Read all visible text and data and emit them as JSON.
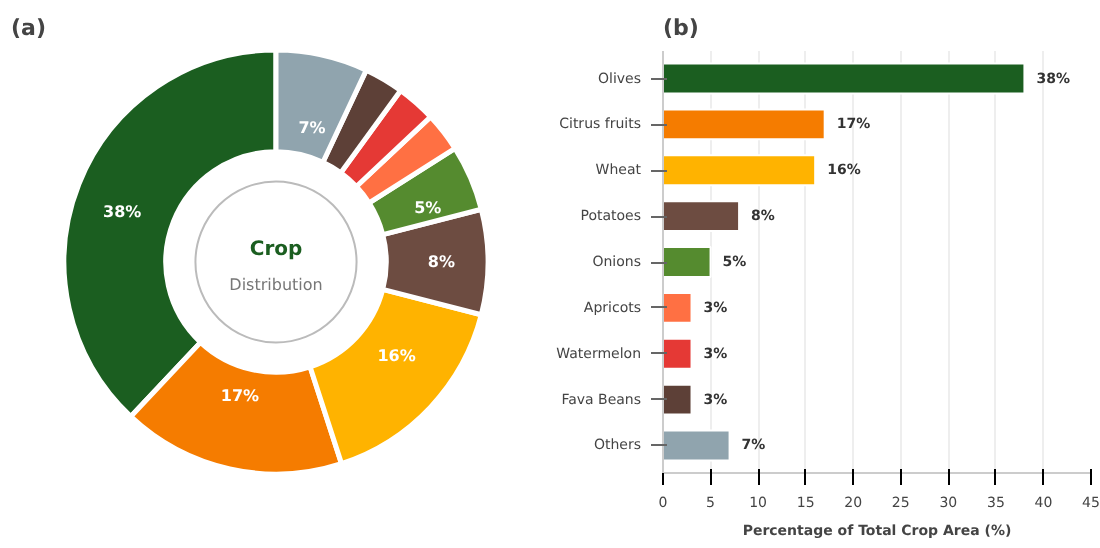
{
  "chart_data": [
    {
      "type": "donut",
      "title": "(a)",
      "categories": [
        null,
        null,
        null,
        null,
        null,
        null,
        null,
        null,
        null
      ],
      "values": [
        38,
        17,
        16,
        8,
        5,
        3,
        3,
        3,
        7
      ],
      "colors": [
        "#1b5e20",
        "#f57c00",
        "#ffb300",
        "#6d4c41",
        "#558b2f",
        "#ff7043",
        "#e53935",
        "#5d4037",
        "#90a4ae"
      ],
      "value_labels": [
        "38%",
        "17%",
        "16%",
        "8%",
        "5%",
        null,
        null,
        null,
        "7%"
      ],
      "annotations": [
        "Crop",
        "Distribution"
      ]
    },
    {
      "type": "bar",
      "orientation": "horizontal",
      "title": "(b)",
      "xlabel": "Percentage of Total Crop Area (%)",
      "categories": [
        "Olives",
        "Citrus fruits",
        "Wheat",
        "Potatoes",
        "Onions",
        "Apricots",
        "Watermelon",
        "Fava Beans",
        "Others"
      ],
      "values": [
        38,
        17,
        16,
        8,
        5,
        3,
        3,
        3,
        7
      ],
      "colors": [
        "#1b5e20",
        "#f57c00",
        "#ffb300",
        "#6d4c41",
        "#558b2f",
        "#ff7043",
        "#e53935",
        "#5d4037",
        "#90a4ae"
      ],
      "value_labels": [
        "38%",
        "17%",
        "16%",
        "8%",
        "5%",
        "3%",
        "3%",
        "3%",
        "7%"
      ],
      "xlim": [
        0,
        45
      ],
      "xticks": [
        0,
        5,
        10,
        15,
        20,
        25,
        30,
        35,
        40,
        45
      ],
      "grid": "x"
    }
  ]
}
